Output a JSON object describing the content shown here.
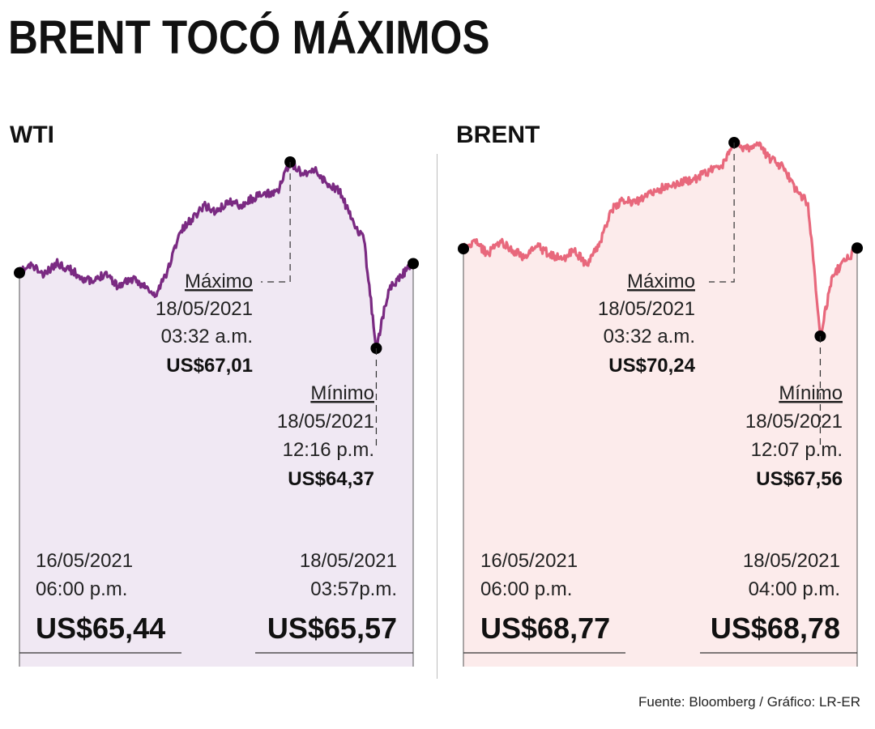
{
  "title": "BRENT TOCÓ MÁXIMOS",
  "source": "Fuente: Bloomberg / Gráfico: LR-ER",
  "colors": {
    "wti": "#7a2a82",
    "wti_fill": "#f0e8f3",
    "brent": "#e8687c",
    "brent_fill": "#fcebeb"
  },
  "chart_data": [
    {
      "type": "line",
      "title": "WTI",
      "unit": "US$",
      "series": [
        {
          "name": "WTI",
          "points": [
            {
              "t": "16/05/2021 06:00 p.m.",
              "v": 65.44
            },
            {
              "t": "",
              "v": 65.55
            },
            {
              "t": "",
              "v": 65.4
            },
            {
              "t": "",
              "v": 65.58
            },
            {
              "t": "",
              "v": 65.5
            },
            {
              "t": "",
              "v": 65.38
            },
            {
              "t": "",
              "v": 65.3
            },
            {
              "t": "",
              "v": 65.45
            },
            {
              "t": "",
              "v": 65.25
            },
            {
              "t": "",
              "v": 65.35
            },
            {
              "t": "",
              "v": 65.28
            },
            {
              "t": "",
              "v": 65.1
            },
            {
              "t": "",
              "v": 65.45
            },
            {
              "t": "",
              "v": 66.0
            },
            {
              "t": "",
              "v": 66.2
            },
            {
              "t": "",
              "v": 66.4
            },
            {
              "t": "",
              "v": 66.3
            },
            {
              "t": "",
              "v": 66.45
            },
            {
              "t": "",
              "v": 66.4
            },
            {
              "t": "",
              "v": 66.5
            },
            {
              "t": "",
              "v": 66.55
            },
            {
              "t": "",
              "v": 66.6
            },
            {
              "t": "18/05/2021 03:32 a.m.",
              "v": 67.01
            },
            {
              "t": "",
              "v": 66.85
            },
            {
              "t": "",
              "v": 66.9
            },
            {
              "t": "",
              "v": 66.7
            },
            {
              "t": "",
              "v": 66.6
            },
            {
              "t": "",
              "v": 66.2
            },
            {
              "t": "",
              "v": 65.9
            },
            {
              "t": "18/05/2021 12:16 p.m.",
              "v": 64.37
            },
            {
              "t": "",
              "v": 65.2
            },
            {
              "t": "",
              "v": 65.4
            },
            {
              "t": "18/05/2021 03:57p.m.",
              "v": 65.57
            }
          ]
        }
      ],
      "annotations": {
        "max": {
          "label": "Máximo",
          "date": "18/05/2021",
          "time": "03:32 a.m.",
          "value_text": "US$67,01"
        },
        "min": {
          "label": "Mínimo",
          "date": "18/05/2021",
          "time": "12:16 p.m.",
          "value_text": "US$64,37"
        },
        "start": {
          "date": "16/05/2021",
          "time": "06:00 p.m.",
          "value_text": "US$65,44"
        },
        "end": {
          "date": "18/05/2021",
          "time": "03:57p.m.",
          "value_text": "US$65,57"
        }
      }
    },
    {
      "type": "line",
      "title": "BRENT",
      "unit": "US$",
      "series": [
        {
          "name": "BRENT",
          "points": [
            {
              "t": "16/05/2021 06:00 p.m.",
              "v": 68.77
            },
            {
              "t": "",
              "v": 68.85
            },
            {
              "t": "",
              "v": 68.7
            },
            {
              "t": "",
              "v": 68.88
            },
            {
              "t": "",
              "v": 68.75
            },
            {
              "t": "",
              "v": 68.65
            },
            {
              "t": "",
              "v": 68.8
            },
            {
              "t": "",
              "v": 68.7
            },
            {
              "t": "",
              "v": 68.62
            },
            {
              "t": "",
              "v": 68.75
            },
            {
              "t": "",
              "v": 68.55
            },
            {
              "t": "",
              "v": 68.8
            },
            {
              "t": "",
              "v": 69.3
            },
            {
              "t": "",
              "v": 69.45
            },
            {
              "t": "",
              "v": 69.4
            },
            {
              "t": "",
              "v": 69.55
            },
            {
              "t": "",
              "v": 69.6
            },
            {
              "t": "",
              "v": 69.65
            },
            {
              "t": "",
              "v": 69.7
            },
            {
              "t": "",
              "v": 69.75
            },
            {
              "t": "",
              "v": 69.85
            },
            {
              "t": "",
              "v": 69.9
            },
            {
              "t": "18/05/2021 03:32 a.m.",
              "v": 70.24
            },
            {
              "t": "",
              "v": 70.15
            },
            {
              "t": "",
              "v": 70.2
            },
            {
              "t": "",
              "v": 70.0
            },
            {
              "t": "",
              "v": 69.9
            },
            {
              "t": "",
              "v": 69.6
            },
            {
              "t": "",
              "v": 69.4
            },
            {
              "t": "18/05/2021 12:07 p.m.",
              "v": 67.56
            },
            {
              "t": "",
              "v": 68.4
            },
            {
              "t": "",
              "v": 68.6
            },
            {
              "t": "18/05/2021 04:00 p.m.",
              "v": 68.78
            }
          ]
        }
      ],
      "annotations": {
        "max": {
          "label": "Máximo",
          "date": "18/05/2021",
          "time": "03:32 a.m.",
          "value_text": "US$70,24"
        },
        "min": {
          "label": "Mínimo",
          "date": "18/05/2021",
          "time": "12:07 p.m.",
          "value_text": "US$67,56"
        },
        "start": {
          "date": "16/05/2021",
          "time": "06:00 p.m.",
          "value_text": "US$68,77"
        },
        "end": {
          "date": "18/05/2021",
          "time": "04:00 p.m.",
          "value_text": "US$68,78"
        }
      }
    }
  ]
}
